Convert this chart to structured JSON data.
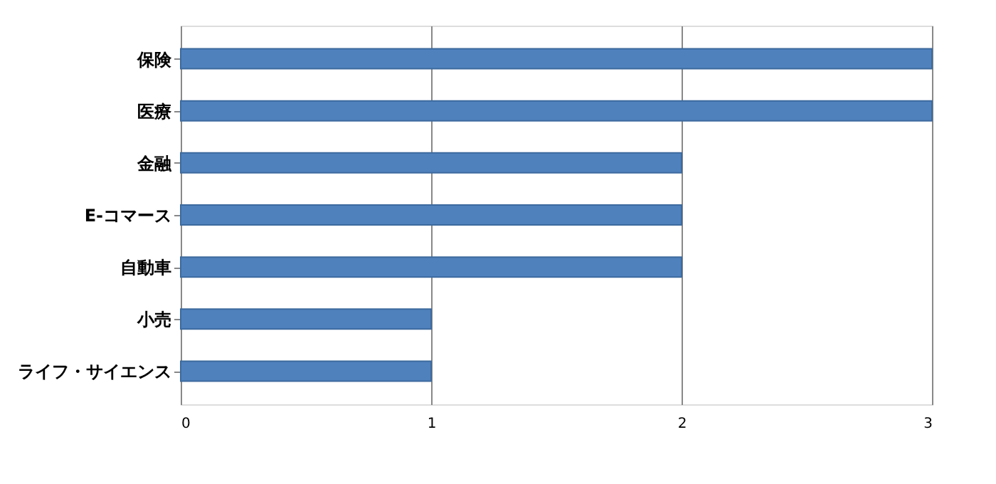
{
  "chart_data": {
    "type": "bar",
    "orientation": "horizontal",
    "categories": [
      "保険",
      "医療",
      "金融",
      "E-コマース",
      "自動車",
      "小売",
      "ライフ・サイエンス"
    ],
    "values": [
      3,
      3,
      2,
      2,
      2,
      1,
      1
    ],
    "color": "#4f81bd",
    "xlim": [
      0,
      3
    ],
    "xticks": [
      0,
      1,
      2,
      3
    ],
    "grid": "x"
  }
}
